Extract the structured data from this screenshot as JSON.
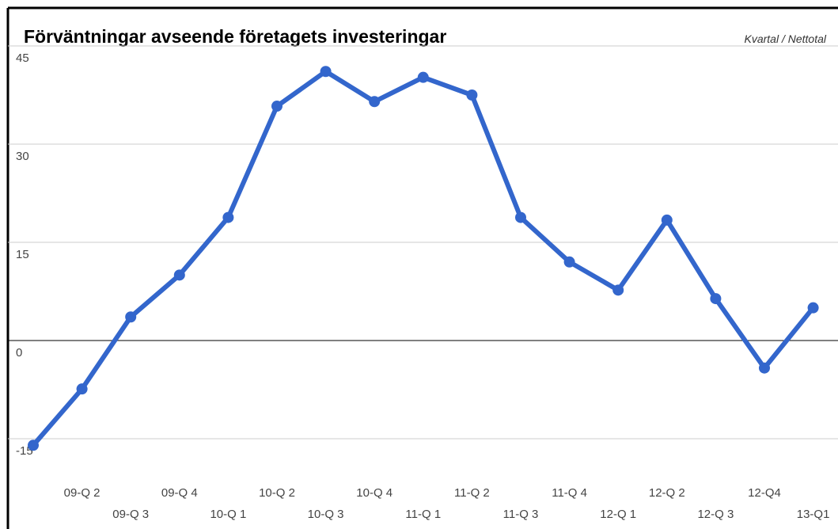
{
  "chart_data": {
    "type": "line",
    "title": "Förväntningar avseende företagets investeringar",
    "subtitle": "Kvartal / Nettotal",
    "categories": [
      null,
      "09-Q 2",
      "09-Q 3",
      "09-Q 4",
      "10-Q 1",
      "10-Q 2",
      "10-Q 3",
      "10-Q 4",
      "11-Q 1",
      "11-Q 2",
      "11-Q 3",
      "11-Q 4",
      "12-Q 1",
      "12-Q 2",
      "12-Q 3",
      "12-Q4",
      "13-Q1"
    ],
    "series": [
      {
        "name": "Nettotal",
        "color": "#3366cc",
        "values": [
          -16,
          -7.4,
          3.6,
          10,
          18.8,
          35.8,
          41.1,
          36.5,
          40.2,
          37.5,
          18.8,
          12,
          7.7,
          18.4,
          6.4,
          -4.2,
          5
        ]
      }
    ],
    "ylim": [
      -18,
      45
    ],
    "yticks": [
      -15,
      0,
      15,
      30,
      45
    ],
    "grid": true
  }
}
